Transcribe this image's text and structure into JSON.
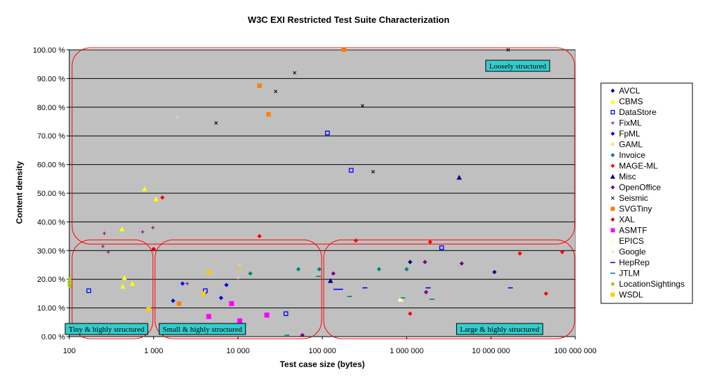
{
  "chart_data": {
    "type": "scatter",
    "title": "W3C EXI Restricted Test Suite Characterization",
    "xlabel": "Test case size (bytes)",
    "ylabel": "Content density",
    "x_scale": "log",
    "xlim": [
      100,
      100000000
    ],
    "ylim": [
      0,
      100
    ],
    "x_ticks": [
      100,
      1000,
      10000,
      100000,
      1000000,
      10000000,
      100000000
    ],
    "x_tick_labels": [
      "100",
      "1 000",
      "10 000",
      "100 000",
      "1 000 000",
      "10 000 000",
      "100 000 000"
    ],
    "y_ticks": [
      0,
      10,
      20,
      30,
      40,
      50,
      60,
      70,
      80,
      90,
      100
    ],
    "y_tick_labels": [
      "0.00 %",
      "10.00 %",
      "20.00 %",
      "30.00 %",
      "40.00 %",
      "50.00 %",
      "60.00 %",
      "70.00 %",
      "80.00 %",
      "90.00 %",
      "100.00 %"
    ],
    "grid": "horizontal",
    "plot_background": "#c0c0c0",
    "legend": "right",
    "regions": [
      {
        "label": "Loosely structured",
        "x": [
          100,
          100000000
        ],
        "y": [
          33,
          100
        ]
      },
      {
        "label": "Tiny & highly structured",
        "x": [
          100,
          1000
        ],
        "y": [
          0,
          33
        ]
      },
      {
        "label": "Small & highly structured",
        "x": [
          1000,
          100000
        ],
        "y": [
          0,
          33
        ]
      },
      {
        "label": "Large & highly structured",
        "x": [
          100000,
          100000000
        ],
        "y": [
          0,
          33
        ]
      }
    ],
    "series": [
      {
        "name": "AVCL",
        "marker": "diamond",
        "color": "#000080",
        "points": [
          [
            1100000,
            26
          ],
          [
            11000000,
            22.5
          ]
        ]
      },
      {
        "name": "CBMS",
        "marker": "triangle",
        "color": "#ffff00",
        "points": [
          [
            430,
            17.5
          ],
          [
            450,
            20.5
          ],
          [
            560,
            18.5
          ],
          [
            420,
            37.5
          ],
          [
            780,
            51.5
          ],
          [
            1070,
            48
          ],
          [
            860000,
            13
          ]
        ]
      },
      {
        "name": "DataStore",
        "marker": "square-open",
        "color": "#0000ff",
        "points": [
          [
            170,
            16
          ],
          [
            4100,
            16
          ],
          [
            37000,
            8
          ],
          [
            115000,
            71
          ],
          [
            220000,
            58
          ],
          [
            2600000,
            31
          ]
        ]
      },
      {
        "name": "FixML",
        "marker": "plus",
        "color": "#800080",
        "points": [
          [
            250,
            31.5
          ],
          [
            260,
            36
          ],
          [
            290,
            29.5
          ],
          [
            740,
            36.5
          ],
          [
            980,
            38
          ],
          [
            2500,
            18.5
          ]
        ]
      },
      {
        "name": "FpML",
        "marker": "diamond",
        "color": "#0000ff",
        "points": [
          [
            1700,
            12.5
          ],
          [
            2200,
            18.5
          ],
          [
            4000,
            15
          ],
          [
            6300,
            13.5
          ],
          [
            7300,
            18
          ]
        ]
      },
      {
        "name": "GAML",
        "marker": "x",
        "color": "#ffcc00",
        "points": [
          [
            10500,
            23
          ]
        ]
      },
      {
        "name": "Invoice",
        "marker": "diamond",
        "color": "#008080",
        "points": [
          [
            14000,
            22
          ],
          [
            52000,
            23.5
          ],
          [
            92000,
            23.5
          ],
          [
            470000,
            23.5
          ],
          [
            1000000,
            23.5
          ]
        ]
      },
      {
        "name": "MAGE-ML",
        "marker": "diamond",
        "color": "#ff0000",
        "points": [
          [
            1000,
            30.5
          ],
          [
            1270,
            48.5
          ],
          [
            18000,
            35
          ],
          [
            250000,
            33.5
          ],
          [
            1100000,
            8
          ],
          [
            1900000,
            33
          ],
          [
            22000000,
            29
          ],
          [
            45000000,
            15
          ],
          [
            70000000,
            29.5
          ]
        ]
      },
      {
        "name": "Misc",
        "marker": "triangle",
        "color": "#000080",
        "points": [
          [
            125000,
            19.5
          ],
          [
            4200000,
            55.5
          ]
        ]
      },
      {
        "name": "OpenOffice",
        "marker": "diamond",
        "color": "#800080",
        "points": [
          [
            58000,
            0.5
          ],
          [
            135000,
            22
          ],
          [
            1650000,
            26
          ],
          [
            1700000,
            15.5
          ],
          [
            4500000,
            25.5
          ]
        ]
      },
      {
        "name": "Seismic",
        "marker": "x",
        "color": "#000000",
        "points": [
          [
            5500,
            74.5
          ],
          [
            28000,
            85.5
          ],
          [
            47000,
            92
          ],
          [
            300000,
            80.5
          ],
          [
            400000,
            57.5
          ],
          [
            16000000,
            100
          ]
        ]
      },
      {
        "name": "SVGTiny",
        "marker": "square",
        "color": "#ff8000",
        "points": [
          [
            2000,
            11.5
          ],
          [
            18000,
            87.5
          ],
          [
            23000,
            77.5
          ],
          [
            180000,
            100
          ]
        ]
      },
      {
        "name": "XAL",
        "marker": "diamond",
        "color": "#cc0000",
        "points": [
          [
            1000,
            30.5
          ]
        ]
      },
      {
        "name": "ASMTF",
        "marker": "square",
        "color": "#ff00ff",
        "points": [
          [
            4500,
            7
          ],
          [
            8400,
            11.5
          ],
          [
            10500,
            5.5
          ],
          [
            22000,
            7.5
          ]
        ]
      },
      {
        "name": "EPICS",
        "marker": "triangle",
        "color": "#ffffc0",
        "points": [
          [
            840000,
            13
          ]
        ]
      },
      {
        "name": "Google",
        "marker": "plus",
        "color": "#ffcc99",
        "points": [
          [
            1900,
            76.5
          ],
          [
            10000,
            20.5
          ],
          [
            10500,
            25
          ]
        ]
      },
      {
        "name": "HepRep",
        "marker": "dash",
        "color": "#0000ff",
        "points": [
          [
            145000,
            16.5
          ],
          [
            165000,
            16.5
          ],
          [
            320000,
            17
          ],
          [
            1800000,
            17
          ],
          [
            17000000,
            17
          ]
        ]
      },
      {
        "name": "JTLM",
        "marker": "dash",
        "color": "#008080",
        "points": [
          [
            38000,
            0.5
          ],
          [
            90000,
            21
          ],
          [
            210000,
            14
          ],
          [
            900000,
            13.5
          ],
          [
            2000000,
            13
          ]
        ]
      },
      {
        "name": "LocationSightings",
        "marker": "diamond",
        "color": "#99cc00",
        "points": [
          [
            100,
            18
          ],
          [
            100,
            19
          ],
          [
            100,
            20
          ],
          [
            102,
            17.5
          ]
        ]
      },
      {
        "name": "WSDL",
        "marker": "square",
        "color": "#ffcc00",
        "points": [
          [
            870,
            9.5
          ],
          [
            3900,
            15
          ],
          [
            4500,
            22.5
          ]
        ]
      }
    ]
  }
}
